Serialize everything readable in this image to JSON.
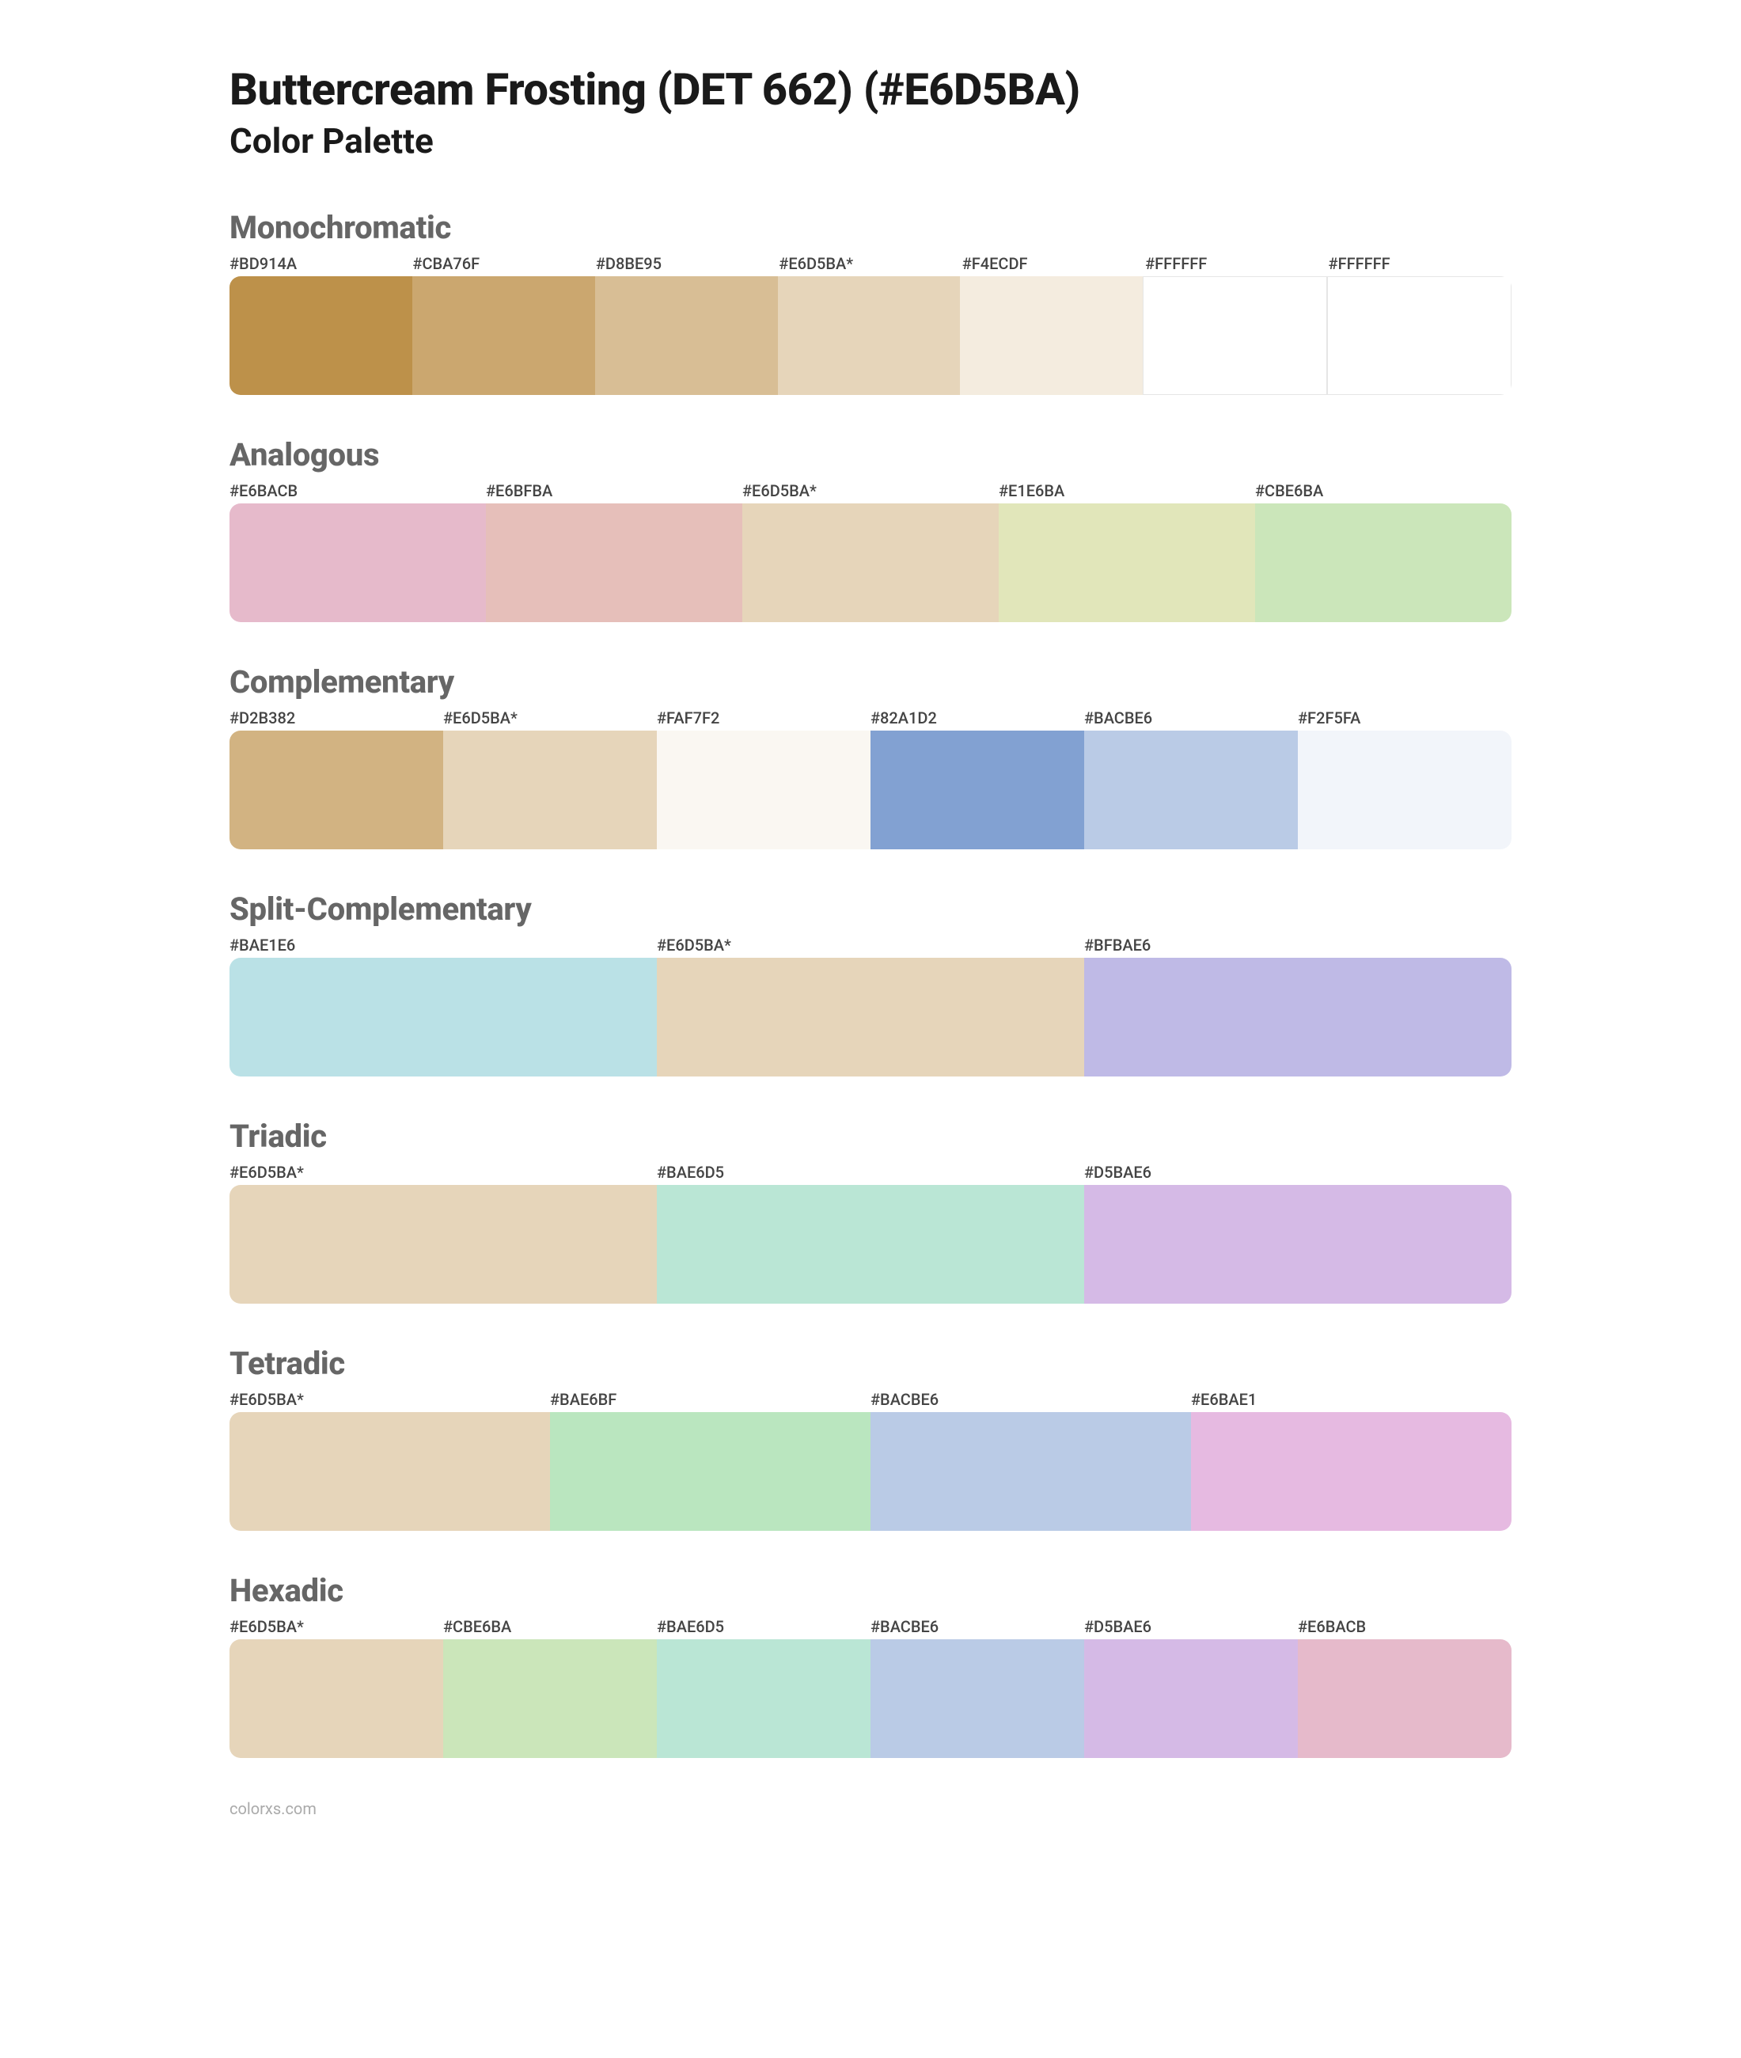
{
  "title": "Buttercream Frosting (DET 662) (#E6D5BA)",
  "subtitle": "Color Palette",
  "footer": "colorxs.com",
  "swatch_height": 150,
  "label_fontsize": 20,
  "title_fontsize": 56,
  "subtitle_fontsize": 44,
  "section_title_fontsize": 40,
  "section_title_color": "#666666",
  "background_color": "#ffffff",
  "border_radius": 14,
  "sections": [
    {
      "name": "Monochromatic",
      "swatches": [
        {
          "label": "#BD914A",
          "color": "#BD914A"
        },
        {
          "label": "#CBA76F",
          "color": "#CBA76F"
        },
        {
          "label": "#D8BE95",
          "color": "#D8BE95"
        },
        {
          "label": "#E6D5BA*",
          "color": "#E6D5BA"
        },
        {
          "label": "#F4ECDF",
          "color": "#F4ECDF"
        },
        {
          "label": "#FFFFFF",
          "color": "#FFFFFF",
          "bordered": true
        },
        {
          "label": "#FFFFFF",
          "color": "#FFFFFF",
          "bordered": true
        }
      ]
    },
    {
      "name": "Analogous",
      "swatches": [
        {
          "label": "#E6BACB",
          "color": "#E6BACB"
        },
        {
          "label": "#E6BFBA",
          "color": "#E6BFBA"
        },
        {
          "label": "#E6D5BA*",
          "color": "#E6D5BA"
        },
        {
          "label": "#E1E6BA",
          "color": "#E1E6BA"
        },
        {
          "label": "#CBE6BA",
          "color": "#CBE6BA"
        }
      ]
    },
    {
      "name": "Complementary",
      "swatches": [
        {
          "label": "#D2B382",
          "color": "#D2B382"
        },
        {
          "label": "#E6D5BA*",
          "color": "#E6D5BA"
        },
        {
          "label": "#FAF7F2",
          "color": "#FAF7F2"
        },
        {
          "label": "#82A1D2",
          "color": "#82A1D2"
        },
        {
          "label": "#BACBE6",
          "color": "#BACBE6"
        },
        {
          "label": "#F2F5FA",
          "color": "#F2F5FA"
        }
      ]
    },
    {
      "name": "Split-Complementary",
      "swatches": [
        {
          "label": "#BAE1E6",
          "color": "#BAE1E6"
        },
        {
          "label": "#E6D5BA*",
          "color": "#E6D5BA"
        },
        {
          "label": "#BFBAE6",
          "color": "#BFBAE6"
        }
      ]
    },
    {
      "name": "Triadic",
      "swatches": [
        {
          "label": "#E6D5BA*",
          "color": "#E6D5BA"
        },
        {
          "label": "#BAE6D5",
          "color": "#BAE6D5"
        },
        {
          "label": "#D5BAE6",
          "color": "#D5BAE6"
        }
      ]
    },
    {
      "name": "Tetradic",
      "swatches": [
        {
          "label": "#E6D5BA*",
          "color": "#E6D5BA"
        },
        {
          "label": "#BAE6BF",
          "color": "#BAE6BF"
        },
        {
          "label": "#BACBE6",
          "color": "#BACBE6"
        },
        {
          "label": "#E6BAE1",
          "color": "#E6BAE1"
        }
      ]
    },
    {
      "name": "Hexadic",
      "swatches": [
        {
          "label": "#E6D5BA*",
          "color": "#E6D5BA"
        },
        {
          "label": "#CBE6BA",
          "color": "#CBE6BA"
        },
        {
          "label": "#BAE6D5",
          "color": "#BAE6D5"
        },
        {
          "label": "#BACBE6",
          "color": "#BACBE6"
        },
        {
          "label": "#D5BAE6",
          "color": "#D5BAE6"
        },
        {
          "label": "#E6BACB",
          "color": "#E6BACB"
        }
      ]
    }
  ]
}
